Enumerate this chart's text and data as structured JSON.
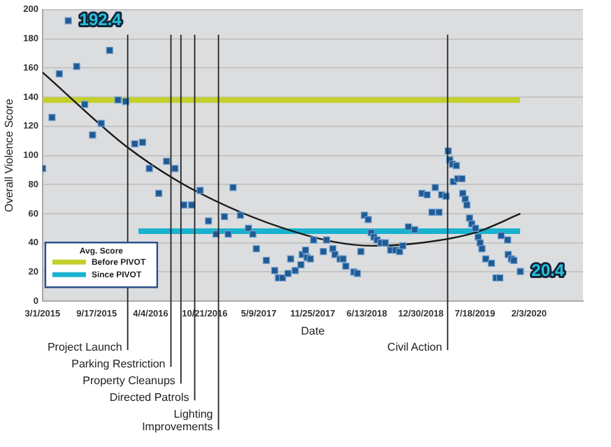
{
  "chart_data": {
    "type": "scatter",
    "xlabel": "Date",
    "ylabel": "Overall Violence Score",
    "legend_title": "Avg. Score",
    "legend": "bottom left",
    "grid": "y",
    "marker": "square",
    "xlim": [
      "2015-03-01",
      "2020-08-21"
    ],
    "ylim": [
      0,
      200
    ],
    "xticks": [
      {
        "value": "2015-03-01",
        "label": "3/1/2015"
      },
      {
        "value": "2015-09-17",
        "label": "9/17/2015"
      },
      {
        "value": "2016-04-04",
        "label": "4/4/2016"
      },
      {
        "value": "2016-10-21",
        "label": "10/21/2016"
      },
      {
        "value": "2017-05-09",
        "label": "5/9/2017"
      },
      {
        "value": "2017-11-25",
        "label": "11/25/2017"
      },
      {
        "value": "2018-06-13",
        "label": "6/13/2018"
      },
      {
        "value": "2018-12-30",
        "label": "12/30/2018"
      },
      {
        "value": "2019-07-18",
        "label": "7/18/2019"
      },
      {
        "value": "2020-02-03",
        "label": "2/3/2020"
      }
    ],
    "yticks": [
      0,
      20,
      40,
      60,
      80,
      100,
      120,
      140,
      160,
      180,
      200
    ],
    "series": [
      {
        "color": "#1f5a94",
        "x": [
          "2015-03-01",
          "2015-04-05",
          "2015-05-02",
          "2015-06-04",
          "2015-07-05",
          "2015-08-04",
          "2015-09-02",
          "2015-10-04",
          "2015-11-04",
          "2015-12-05",
          "2016-01-03",
          "2016-02-05",
          "2016-03-05",
          "2016-03-30",
          "2016-05-04",
          "2016-06-02",
          "2016-07-03",
          "2016-08-05",
          "2016-09-03",
          "2016-10-04",
          "2016-11-04",
          "2016-12-02",
          "2017-01-02",
          "2017-01-16",
          "2017-02-03",
          "2017-03-02",
          "2017-04-01",
          "2017-04-17",
          "2017-04-30",
          "2017-06-06",
          "2017-07-07",
          "2017-07-21",
          "2017-08-05",
          "2017-08-25",
          "2017-09-04",
          "2017-09-21",
          "2017-10-12",
          "2017-10-17",
          "2017-10-29",
          "2017-11-04",
          "2017-11-16",
          "2017-11-28",
          "2018-01-03",
          "2018-01-15",
          "2018-02-07",
          "2018-02-15",
          "2018-03-06",
          "2018-03-17",
          "2018-03-27",
          "2018-04-26",
          "2018-05-09",
          "2018-05-22",
          "2018-06-04",
          "2018-06-18",
          "2018-06-29",
          "2018-07-09",
          "2018-07-21",
          "2018-08-04",
          "2018-08-20",
          "2018-09-09",
          "2018-09-27",
          "2018-10-12",
          "2018-10-24",
          "2018-11-14",
          "2018-12-07",
          "2019-01-03",
          "2019-01-22",
          "2019-02-09",
          "2019-02-21",
          "2019-03-07",
          "2019-03-17",
          "2019-04-02",
          "2019-04-10",
          "2019-04-16",
          "2019-04-26",
          "2019-04-29",
          "2019-05-10",
          "2019-05-15",
          "2019-05-31",
          "2019-06-03",
          "2019-06-12",
          "2019-06-18",
          "2019-06-28",
          "2019-07-06",
          "2019-07-20",
          "2019-07-30",
          "2019-08-06",
          "2019-08-13",
          "2019-08-27",
          "2019-09-17",
          "2019-10-04",
          "2019-10-18",
          "2019-10-23",
          "2019-11-16",
          "2019-11-18",
          "2019-11-30",
          "2019-12-09",
          "2020-01-02"
        ],
        "values": [
          91,
          126,
          156,
          192.4,
          161,
          135,
          114,
          122,
          172,
          138,
          137,
          108,
          109,
          91,
          74,
          96,
          91,
          66,
          66,
          76,
          55,
          46,
          58,
          46,
          78,
          59,
          50,
          46,
          36,
          28,
          21,
          16,
          16,
          19,
          29,
          21,
          25,
          32,
          35,
          30,
          29,
          42,
          34,
          42,
          36,
          32,
          29,
          29,
          24,
          20,
          19,
          34,
          59,
          56,
          47,
          44,
          42,
          40,
          40,
          35,
          35,
          34,
          38,
          51,
          49,
          74,
          73,
          61,
          78,
          61,
          73,
          72,
          103,
          97,
          94,
          82,
          93,
          84,
          84,
          74,
          70,
          66,
          57,
          53,
          50,
          44,
          40,
          36,
          29,
          26,
          16,
          16,
          45,
          42,
          32,
          29,
          28,
          20.4
        ]
      },
      {
        "type": "line",
        "marker": "none",
        "color": "#1a1a1a",
        "x": [
          "2015-03-01",
          "2016-01-13",
          "2016-10-04",
          "2017-11-06",
          "2018-07-01",
          "2018-12-30",
          "2019-07-18",
          "2020-01-02"
        ],
        "values": [
          157,
          105,
          74,
          45,
          38,
          40,
          47,
          60
        ]
      },
      {
        "type": "line",
        "marker": "none",
        "name": "Before PIVOT",
        "color": "#c3cf2a",
        "x": [
          "2015-03-01",
          "2020-01-01"
        ],
        "values": [
          138,
          138
        ]
      },
      {
        "type": "line",
        "marker": "none",
        "name": "Since PIVOT",
        "color": "#19b2cf",
        "x": [
          "2016-02-19",
          "2020-01-01"
        ],
        "values": [
          48,
          48
        ]
      }
    ],
    "ref_lines": [
      {
        "axis": "x",
        "value": "2016-01-10",
        "label": "Project Launch"
      },
      {
        "axis": "x",
        "value": "2016-06-18",
        "label": "Parking Restriction"
      },
      {
        "axis": "x",
        "value": "2016-07-25",
        "label": "Property Cleanups"
      },
      {
        "axis": "x",
        "value": "2016-09-14",
        "label": "Directed Patrols"
      },
      {
        "axis": "x",
        "value": "2016-12-11",
        "label": "Lighting\nImprovements"
      },
      {
        "axis": "x",
        "value": "2019-04-08",
        "label": "Civil Action"
      }
    ],
    "annotations": [
      {
        "text": "192.4",
        "x": "2015-06-04",
        "y": 192.4
      },
      {
        "text": "20.4",
        "x": "2020-01-02",
        "y": 20.4
      }
    ]
  }
}
